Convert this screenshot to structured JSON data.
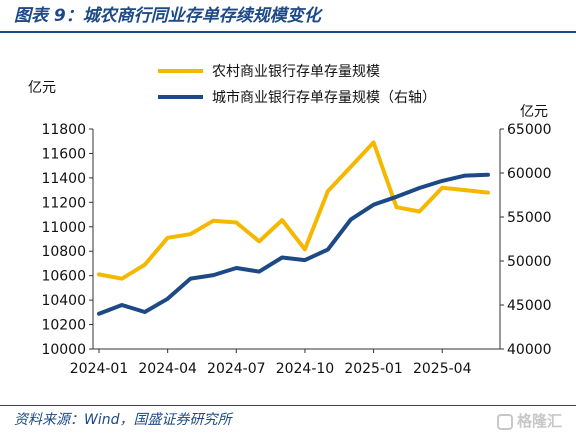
{
  "figure": {
    "title": "图表 9：城农商行同业存单存续规模变化",
    "source": "资料来源：Wind，国盛证券研究所",
    "watermark": "格隆汇"
  },
  "chart_data": {
    "type": "line",
    "left_axis_unit": "亿元",
    "right_axis_unit": "亿元",
    "x": [
      "2024-01",
      "2024-02",
      "2024-03",
      "2024-04",
      "2024-05",
      "2024-06",
      "2024-07",
      "2024-08",
      "2024-09",
      "2024-10",
      "2024-11",
      "2024-12",
      "2025-01",
      "2025-02",
      "2025-03",
      "2025-04",
      "2025-05",
      "2025-06"
    ],
    "x_tick_labels": [
      "2024-01",
      "2024-04",
      "2024-07",
      "2024-10",
      "2025-01",
      "2025-04"
    ],
    "left_axis": {
      "min": 10000,
      "max": 11800,
      "ticks": [
        10000,
        10200,
        10400,
        10600,
        10800,
        11000,
        11200,
        11400,
        11600,
        11800
      ]
    },
    "right_axis": {
      "min": 40000,
      "max": 65000,
      "ticks": [
        40000,
        45000,
        50000,
        55000,
        60000,
        65000
      ]
    },
    "series": [
      {
        "name": "农村商业银行存单存量规模",
        "axis": "left",
        "color": "#f5b800",
        "values": [
          10610,
          10575,
          10690,
          10910,
          10940,
          11050,
          11035,
          10880,
          11055,
          10815,
          11290,
          11490,
          11690,
          11160,
          11125,
          11320,
          11300,
          11280
        ]
      },
      {
        "name": "城市商业银行存单存量规模（右轴）",
        "axis": "right",
        "color": "#1d4a86",
        "values": [
          44000,
          45000,
          44200,
          45700,
          48000,
          48400,
          49200,
          48800,
          50400,
          50100,
          51300,
          54700,
          56400,
          57300,
          58300,
          59100,
          59700,
          59800
        ]
      }
    ],
    "legend_placement": "top-center",
    "grid": false
  }
}
